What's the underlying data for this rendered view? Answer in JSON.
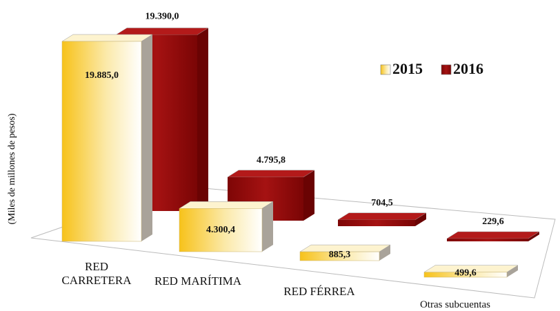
{
  "chart_data": {
    "type": "bar3d",
    "ylabel": "(Miles de millones de pesos)",
    "categories": [
      "RED CARRETERA",
      "RED MARÍTIMA",
      "RED FÉRREA",
      "Otras subcuentas"
    ],
    "series": [
      {
        "name": "2015",
        "color": "#f5c21b",
        "values": [
          19885.0,
          4300.4,
          885.3,
          499.6
        ],
        "value_labels": [
          "19.885,0",
          "4.300,4",
          "885,3",
          "499,6"
        ]
      },
      {
        "name": "2016",
        "color": "#9b0b0b",
        "values": [
          19390.0,
          4795.8,
          704.5,
          229.6
        ],
        "value_labels": [
          "19.390,0",
          "4.795,8",
          "704,5",
          "229,6"
        ]
      }
    ],
    "legend": "upper right"
  }
}
